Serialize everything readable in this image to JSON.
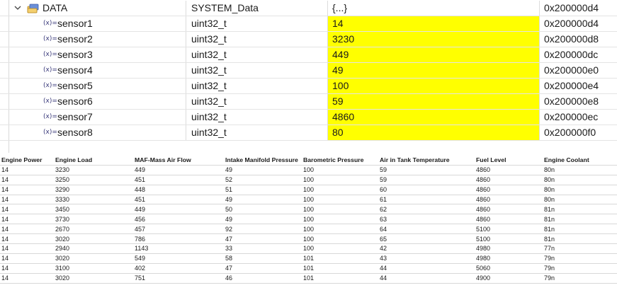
{
  "variables": {
    "root": {
      "name": "DATA",
      "type": "SYSTEM_Data",
      "value": "{...}",
      "address": "0x200000d4"
    },
    "var_icon_label": "(x)=",
    "children": [
      {
        "name": "sensor1",
        "type": "uint32_t",
        "value": "14",
        "address": "0x200000d4"
      },
      {
        "name": "sensor2",
        "type": "uint32_t",
        "value": "3230",
        "address": "0x200000d8"
      },
      {
        "name": "sensor3",
        "type": "uint32_t",
        "value": "449",
        "address": "0x200000dc"
      },
      {
        "name": "sensor4",
        "type": "uint32_t",
        "value": "49",
        "address": "0x200000e0"
      },
      {
        "name": "sensor5",
        "type": "uint32_t",
        "value": "100",
        "address": "0x200000e4"
      },
      {
        "name": "sensor6",
        "type": "uint32_t",
        "value": "59",
        "address": "0x200000e8"
      },
      {
        "name": "sensor7",
        "type": "uint32_t",
        "value": "4860",
        "address": "0x200000ec"
      },
      {
        "name": "sensor8",
        "type": "uint32_t",
        "value": "80",
        "address": "0x200000f0"
      }
    ],
    "changed_value_color": "#ffff00"
  },
  "table": {
    "headers": [
      "Engine Power",
      "Engine Load",
      "MAF-Mass Air Flow",
      "Intake Manifold Pressure",
      "Barometric Pressure",
      "Air in Tank Temperature",
      "Fuel Level",
      "Engine Coolant"
    ],
    "rows": [
      [
        "14",
        "3230",
        "449",
        "49",
        "100",
        "59",
        "4860",
        "80n"
      ],
      [
        "14",
        "3250",
        "451",
        "52",
        "100",
        "59",
        "4860",
        "80n"
      ],
      [
        "14",
        "3290",
        "448",
        "51",
        "100",
        "60",
        "4860",
        "80n"
      ],
      [
        "14",
        "3330",
        "451",
        "49",
        "100",
        "61",
        "4860",
        "80n"
      ],
      [
        "14",
        "3450",
        "449",
        "50",
        "100",
        "62",
        "4860",
        "81n"
      ],
      [
        "14",
        "3730",
        "456",
        "49",
        "100",
        "63",
        "4860",
        "81n"
      ],
      [
        "14",
        "2670",
        "457",
        "92",
        "100",
        "64",
        "5100",
        "81n"
      ],
      [
        "14",
        "3020",
        "786",
        "47",
        "100",
        "65",
        "5100",
        "81n"
      ],
      [
        "14",
        "2940",
        "1143",
        "33",
        "100",
        "42",
        "4980",
        "77n"
      ],
      [
        "14",
        "3020",
        "549",
        "58",
        "101",
        "43",
        "4980",
        "79n"
      ],
      [
        "14",
        "3100",
        "402",
        "47",
        "101",
        "44",
        "5060",
        "79n"
      ],
      [
        "14",
        "3020",
        "751",
        "46",
        "101",
        "44",
        "4900",
        "79n"
      ]
    ]
  }
}
